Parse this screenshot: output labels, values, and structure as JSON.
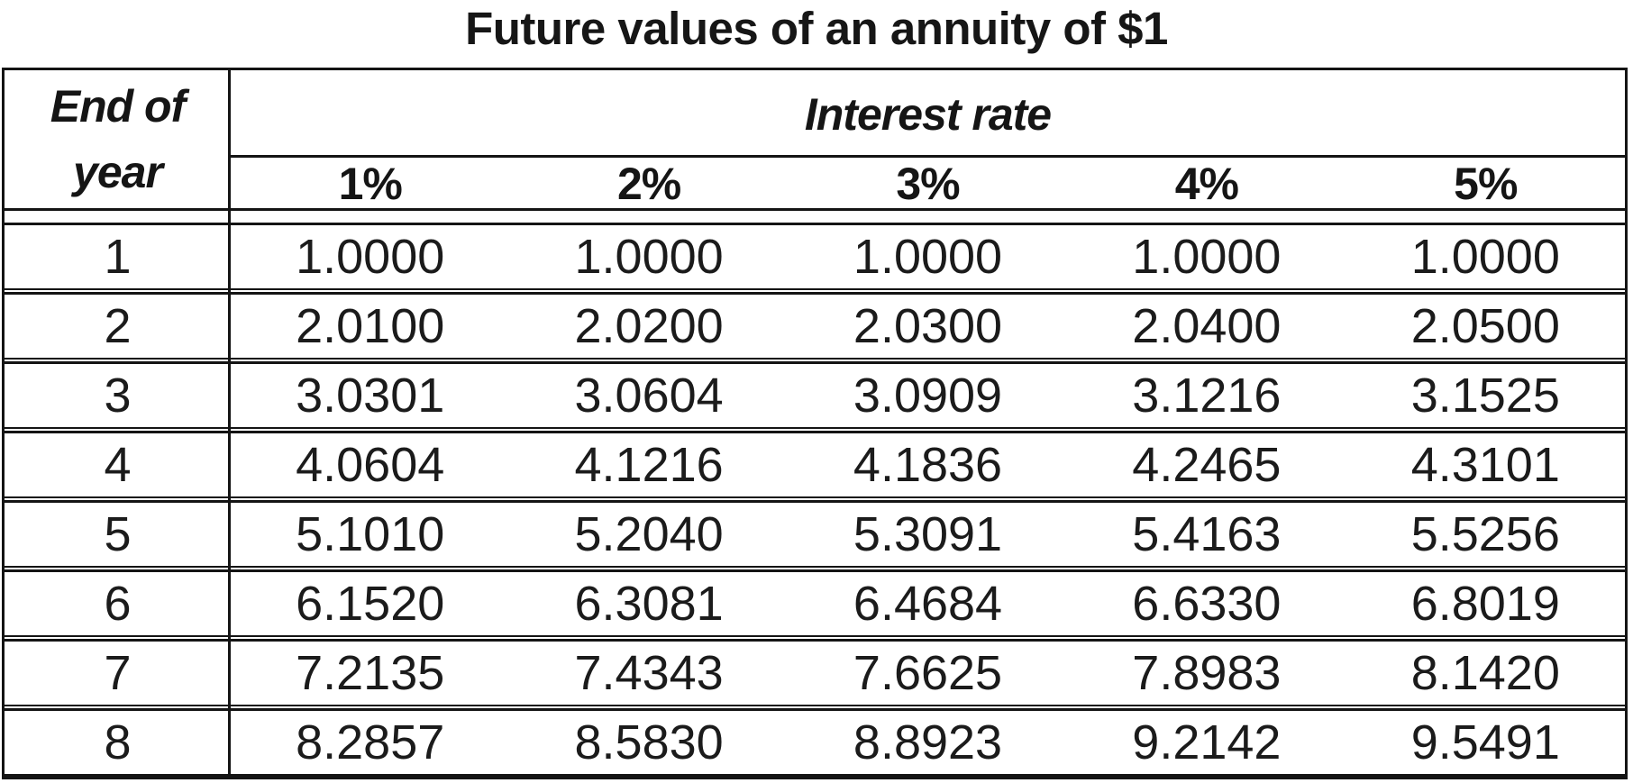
{
  "title": "Future values of an annuity of $1",
  "table": {
    "year_header": [
      "End of",
      "year"
    ],
    "group_header": "Interest rate",
    "columns": [
      "1%",
      "2%",
      "3%",
      "4%",
      "5%"
    ],
    "rows": [
      {
        "year": "1",
        "values": [
          "1.0000",
          "1.0000",
          "1.0000",
          "1.0000",
          "1.0000"
        ]
      },
      {
        "year": "2",
        "values": [
          "2.0100",
          "2.0200",
          "2.0300",
          "2.0400",
          "2.0500"
        ]
      },
      {
        "year": "3",
        "values": [
          "3.0301",
          "3.0604",
          "3.0909",
          "3.1216",
          "3.1525"
        ]
      },
      {
        "year": "4",
        "values": [
          "4.0604",
          "4.1216",
          "4.1836",
          "4.2465",
          "4.3101"
        ]
      },
      {
        "year": "5",
        "values": [
          "5.1010",
          "5.2040",
          "5.3091",
          "5.4163",
          "5.5256"
        ]
      },
      {
        "year": "6",
        "values": [
          "6.1520",
          "6.3081",
          "6.4684",
          "6.6330",
          "6.8019"
        ]
      },
      {
        "year": "7",
        "values": [
          "7.2135",
          "7.4343",
          "7.6625",
          "7.8983",
          "8.1420"
        ]
      },
      {
        "year": "8",
        "values": [
          "8.2857",
          "8.5830",
          "8.8923",
          "9.2142",
          "9.5491"
        ]
      }
    ],
    "ink_color": "#141414"
  }
}
